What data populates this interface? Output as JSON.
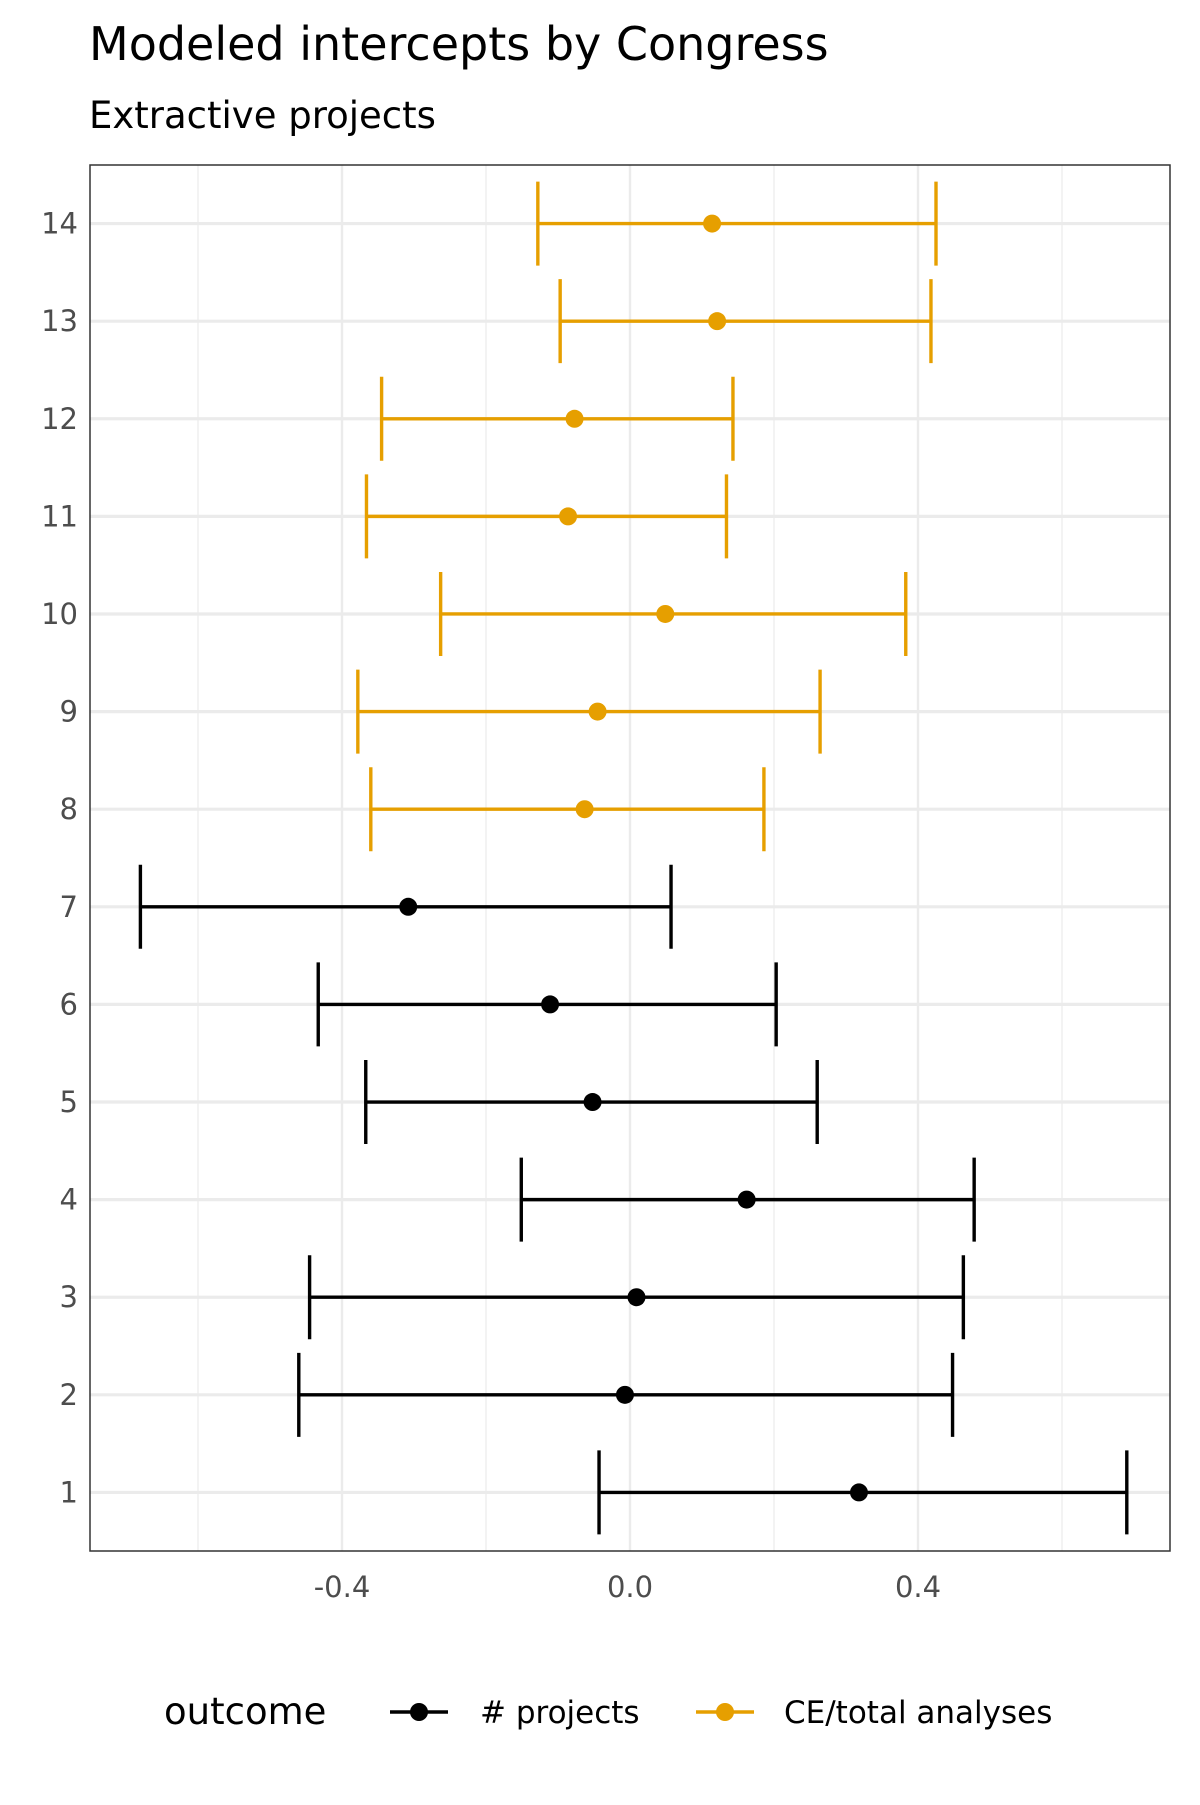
{
  "chart_data": {
    "type": "errorbar",
    "title": "Modeled intercepts by Congress",
    "subtitle": "Extractive projects",
    "orientation": "horizontal",
    "categories": [
      "1",
      "2",
      "3",
      "4",
      "5",
      "6",
      "7",
      "8",
      "9",
      "10",
      "11",
      "12",
      "13",
      "14"
    ],
    "xlim": [
      -0.75,
      0.75
    ],
    "xticks": [
      -0.4,
      0.0,
      0.4
    ],
    "xtick_labels": [
      "-0.4",
      "0.0",
      "0.4"
    ],
    "grid": true,
    "legend_position": "bottom",
    "legend_title": "outcome",
    "series": [
      {
        "name": "# projects",
        "color": "#000000",
        "points": [
          {
            "category": "1",
            "estimate": 0.318,
            "lower": -0.043,
            "upper": 0.69
          },
          {
            "category": "2",
            "estimate": -0.007,
            "lower": -0.46,
            "upper": 0.448
          },
          {
            "category": "3",
            "estimate": 0.009,
            "lower": -0.445,
            "upper": 0.463
          },
          {
            "category": "4",
            "estimate": 0.162,
            "lower": -0.151,
            "upper": 0.478
          },
          {
            "category": "5",
            "estimate": -0.052,
            "lower": -0.367,
            "upper": 0.26
          },
          {
            "category": "6",
            "estimate": -0.111,
            "lower": -0.433,
            "upper": 0.203
          },
          {
            "category": "7",
            "estimate": -0.308,
            "lower": -0.68,
            "upper": 0.057
          }
        ]
      },
      {
        "name": "CE/total analyses",
        "color": "#E69F00",
        "points": [
          {
            "category": "8",
            "estimate": -0.063,
            "lower": -0.36,
            "upper": 0.186
          },
          {
            "category": "9",
            "estimate": -0.045,
            "lower": -0.378,
            "upper": 0.264
          },
          {
            "category": "10",
            "estimate": 0.049,
            "lower": -0.263,
            "upper": 0.383
          },
          {
            "category": "11",
            "estimate": -0.086,
            "lower": -0.366,
            "upper": 0.134
          },
          {
            "category": "12",
            "estimate": -0.077,
            "lower": -0.345,
            "upper": 0.143
          },
          {
            "category": "13",
            "estimate": 0.121,
            "lower": -0.097,
            "upper": 0.418
          },
          {
            "category": "14",
            "estimate": 0.114,
            "lower": -0.128,
            "upper": 0.425
          }
        ]
      }
    ]
  }
}
